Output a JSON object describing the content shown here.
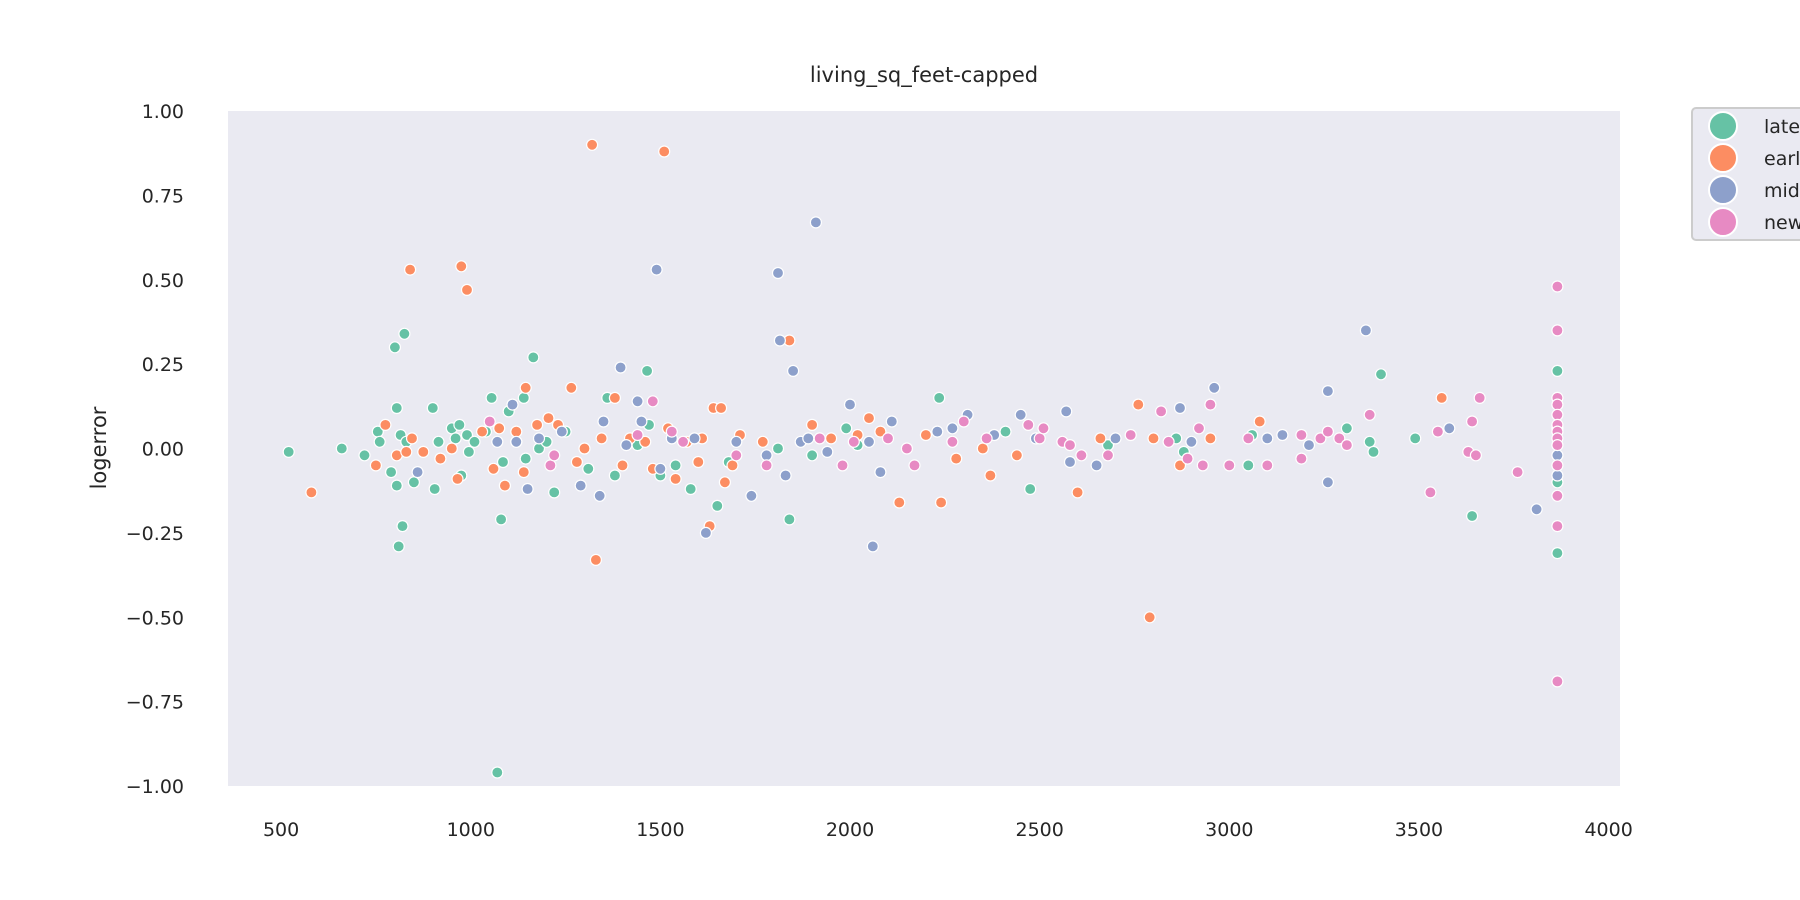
{
  "chart_data": {
    "type": "scatter",
    "title": "living_sq_feet-capped",
    "xlabel": "",
    "ylabel": "logerror",
    "xlim": [
      360,
      4030
    ],
    "ylim": [
      -1.0,
      1.0
    ],
    "xticks": [
      {
        "value": 500,
        "label": "500"
      },
      {
        "value": 1000,
        "label": "1000"
      },
      {
        "value": 1500,
        "label": "1500"
      },
      {
        "value": 2000,
        "label": "2000"
      },
      {
        "value": 2500,
        "label": "2500"
      },
      {
        "value": 3000,
        "label": "3000"
      },
      {
        "value": 3500,
        "label": "3500"
      },
      {
        "value": 4000,
        "label": "4000"
      }
    ],
    "yticks": [
      {
        "value": 1.0,
        "label": "1.00"
      },
      {
        "value": 0.75,
        "label": "0.75"
      },
      {
        "value": 0.5,
        "label": "0.50"
      },
      {
        "value": 0.25,
        "label": "0.25"
      },
      {
        "value": 0.0,
        "label": "0.00"
      },
      {
        "value": -0.25,
        "label": "−0.25"
      },
      {
        "value": -0.5,
        "label": "−0.50"
      },
      {
        "value": -0.75,
        "label": "−0.75"
      },
      {
        "value": -1.0,
        "label": "−1.00"
      }
    ],
    "grid": false,
    "background": "#eaeaf2",
    "legend_position": "outside-top-right",
    "series": [
      {
        "name": "late",
        "color": "#66c2a5",
        "points": [
          [
            520,
            -0.01
          ],
          [
            660,
            0.0
          ],
          [
            720,
            -0.02
          ],
          [
            755,
            0.05
          ],
          [
            760,
            0.02
          ],
          [
            790,
            -0.07
          ],
          [
            800,
            0.3
          ],
          [
            805,
            0.12
          ],
          [
            805,
            -0.11
          ],
          [
            810,
            -0.29
          ],
          [
            815,
            0.04
          ],
          [
            820,
            -0.23
          ],
          [
            825,
            0.34
          ],
          [
            830,
            0.02
          ],
          [
            850,
            -0.1
          ],
          [
            900,
            0.12
          ],
          [
            905,
            -0.12
          ],
          [
            915,
            0.02
          ],
          [
            950,
            0.06
          ],
          [
            960,
            0.03
          ],
          [
            970,
            0.07
          ],
          [
            975,
            -0.08
          ],
          [
            990,
            0.04
          ],
          [
            995,
            -0.01
          ],
          [
            1010,
            0.02
          ],
          [
            1040,
            0.05
          ],
          [
            1055,
            0.15
          ],
          [
            1080,
            -0.21
          ],
          [
            1085,
            -0.04
          ],
          [
            1100,
            0.11
          ],
          [
            1120,
            0.02
          ],
          [
            1140,
            0.15
          ],
          [
            1145,
            -0.03
          ],
          [
            1165,
            0.27
          ],
          [
            1180,
            0.0
          ],
          [
            1200,
            0.02
          ],
          [
            1220,
            -0.13
          ],
          [
            1250,
            0.05
          ],
          [
            1310,
            -0.06
          ],
          [
            1360,
            0.15
          ],
          [
            1380,
            -0.08
          ],
          [
            1440,
            0.01
          ],
          [
            1465,
            0.23
          ],
          [
            1470,
            0.07
          ],
          [
            1500,
            -0.08
          ],
          [
            1540,
            -0.05
          ],
          [
            1580,
            -0.12
          ],
          [
            1650,
            -0.17
          ],
          [
            1680,
            -0.04
          ],
          [
            1810,
            0.0
          ],
          [
            1840,
            -0.21
          ],
          [
            1900,
            -0.02
          ],
          [
            1990,
            0.06
          ],
          [
            2020,
            0.01
          ],
          [
            2235,
            0.15
          ],
          [
            2410,
            0.05
          ],
          [
            2475,
            -0.12
          ],
          [
            2680,
            0.01
          ],
          [
            2860,
            0.03
          ],
          [
            2880,
            -0.01
          ],
          [
            3050,
            -0.05
          ],
          [
            3060,
            0.04
          ],
          [
            3310,
            0.06
          ],
          [
            3370,
            0.02
          ],
          [
            3380,
            -0.01
          ],
          [
            3400,
            0.22
          ],
          [
            3490,
            0.03
          ],
          [
            3640,
            -0.2
          ],
          [
            3865,
            0.23
          ],
          [
            3865,
            0.06
          ],
          [
            3865,
            -0.1
          ],
          [
            3865,
            -0.31
          ],
          [
            1070,
            -0.96
          ]
        ]
      },
      {
        "name": "earl",
        "color": "#fc8d62",
        "points": [
          [
            580,
            -0.13
          ],
          [
            750,
            -0.05
          ],
          [
            775,
            0.07
          ],
          [
            805,
            -0.02
          ],
          [
            830,
            -0.01
          ],
          [
            840,
            0.53
          ],
          [
            845,
            0.03
          ],
          [
            875,
            -0.01
          ],
          [
            920,
            -0.03
          ],
          [
            950,
            0.0
          ],
          [
            965,
            -0.09
          ],
          [
            975,
            0.54
          ],
          [
            990,
            0.47
          ],
          [
            1030,
            0.05
          ],
          [
            1060,
            -0.06
          ],
          [
            1075,
            0.06
          ],
          [
            1090,
            -0.11
          ],
          [
            1120,
            0.05
          ],
          [
            1140,
            -0.07
          ],
          [
            1145,
            0.18
          ],
          [
            1175,
            0.07
          ],
          [
            1205,
            0.09
          ],
          [
            1230,
            0.07
          ],
          [
            1265,
            0.18
          ],
          [
            1280,
            -0.04
          ],
          [
            1300,
            0.0
          ],
          [
            1320,
            0.9
          ],
          [
            1330,
            -0.33
          ],
          [
            1345,
            0.03
          ],
          [
            1380,
            0.15
          ],
          [
            1400,
            -0.05
          ],
          [
            1420,
            0.03
          ],
          [
            1460,
            0.02
          ],
          [
            1480,
            -0.06
          ],
          [
            1510,
            0.88
          ],
          [
            1520,
            0.06
          ],
          [
            1540,
            -0.09
          ],
          [
            1570,
            0.02
          ],
          [
            1600,
            -0.04
          ],
          [
            1610,
            0.03
          ],
          [
            1630,
            -0.23
          ],
          [
            1640,
            0.12
          ],
          [
            1660,
            0.12
          ],
          [
            1670,
            -0.1
          ],
          [
            1690,
            -0.05
          ],
          [
            1710,
            0.04
          ],
          [
            1770,
            0.02
          ],
          [
            1840,
            0.32
          ],
          [
            1900,
            0.07
          ],
          [
            1950,
            0.03
          ],
          [
            2020,
            0.04
          ],
          [
            2050,
            0.09
          ],
          [
            2080,
            0.05
          ],
          [
            2130,
            -0.16
          ],
          [
            2200,
            0.04
          ],
          [
            2240,
            -0.16
          ],
          [
            2280,
            -0.03
          ],
          [
            2350,
            0.0
          ],
          [
            2370,
            -0.08
          ],
          [
            2440,
            -0.02
          ],
          [
            2600,
            -0.13
          ],
          [
            2660,
            0.03
          ],
          [
            2760,
            0.13
          ],
          [
            2790,
            -0.5
          ],
          [
            2800,
            0.03
          ],
          [
            2870,
            -0.05
          ],
          [
            2950,
            0.03
          ],
          [
            3080,
            0.08
          ],
          [
            3560,
            0.15
          ]
        ]
      },
      {
        "name": "mid",
        "color": "#8da0cb",
        "points": [
          [
            860,
            -0.07
          ],
          [
            1070,
            0.02
          ],
          [
            1110,
            0.13
          ],
          [
            1120,
            0.02
          ],
          [
            1150,
            -0.12
          ],
          [
            1180,
            0.03
          ],
          [
            1240,
            0.05
          ],
          [
            1290,
            -0.11
          ],
          [
            1340,
            -0.14
          ],
          [
            1350,
            0.08
          ],
          [
            1395,
            0.24
          ],
          [
            1410,
            0.01
          ],
          [
            1440,
            0.14
          ],
          [
            1450,
            0.08
          ],
          [
            1490,
            0.53
          ],
          [
            1500,
            -0.06
          ],
          [
            1530,
            0.03
          ],
          [
            1590,
            0.03
          ],
          [
            1620,
            -0.25
          ],
          [
            1700,
            0.02
          ],
          [
            1740,
            -0.14
          ],
          [
            1780,
            -0.02
          ],
          [
            1810,
            0.52
          ],
          [
            1815,
            0.32
          ],
          [
            1830,
            -0.08
          ],
          [
            1850,
            0.23
          ],
          [
            1870,
            0.02
          ],
          [
            1890,
            0.03
          ],
          [
            1910,
            0.67
          ],
          [
            1940,
            -0.01
          ],
          [
            2000,
            0.13
          ],
          [
            2050,
            0.02
          ],
          [
            2060,
            -0.29
          ],
          [
            2080,
            -0.07
          ],
          [
            2110,
            0.08
          ],
          [
            2230,
            0.05
          ],
          [
            2270,
            0.06
          ],
          [
            2310,
            0.1
          ],
          [
            2380,
            0.04
          ],
          [
            2450,
            0.1
          ],
          [
            2490,
            0.03
          ],
          [
            2570,
            0.11
          ],
          [
            2580,
            -0.04
          ],
          [
            2650,
            -0.05
          ],
          [
            2700,
            0.03
          ],
          [
            2870,
            0.12
          ],
          [
            2900,
            0.02
          ],
          [
            2960,
            0.18
          ],
          [
            3100,
            0.03
          ],
          [
            3140,
            0.04
          ],
          [
            3210,
            0.01
          ],
          [
            3260,
            0.17
          ],
          [
            3260,
            -0.1
          ],
          [
            3360,
            0.35
          ],
          [
            3580,
            0.06
          ],
          [
            3810,
            -0.18
          ],
          [
            3865,
            -0.02
          ],
          [
            3865,
            -0.08
          ]
        ]
      },
      {
        "name": "new",
        "color": "#e78ac3",
        "points": [
          [
            1050,
            0.08
          ],
          [
            1210,
            -0.05
          ],
          [
            1220,
            -0.02
          ],
          [
            1440,
            0.04
          ],
          [
            1480,
            0.14
          ],
          [
            1530,
            0.05
          ],
          [
            1560,
            0.02
          ],
          [
            1700,
            -0.02
          ],
          [
            1780,
            -0.05
          ],
          [
            1920,
            0.03
          ],
          [
            1980,
            -0.05
          ],
          [
            2010,
            0.02
          ],
          [
            2100,
            0.03
          ],
          [
            2150,
            0.0
          ],
          [
            2170,
            -0.05
          ],
          [
            2270,
            0.02
          ],
          [
            2300,
            0.08
          ],
          [
            2360,
            0.03
          ],
          [
            2470,
            0.07
          ],
          [
            2500,
            0.03
          ],
          [
            2510,
            0.06
          ],
          [
            2560,
            0.02
          ],
          [
            2580,
            0.01
          ],
          [
            2610,
            -0.02
          ],
          [
            2680,
            -0.02
          ],
          [
            2740,
            0.04
          ],
          [
            2820,
            0.11
          ],
          [
            2840,
            0.02
          ],
          [
            2890,
            -0.03
          ],
          [
            2920,
            0.06
          ],
          [
            2930,
            -0.05
          ],
          [
            2950,
            0.13
          ],
          [
            3000,
            -0.05
          ],
          [
            3050,
            0.03
          ],
          [
            3100,
            -0.05
          ],
          [
            3190,
            0.04
          ],
          [
            3190,
            -0.03
          ],
          [
            3240,
            0.03
          ],
          [
            3260,
            0.05
          ],
          [
            3290,
            0.03
          ],
          [
            3310,
            0.01
          ],
          [
            3370,
            0.1
          ],
          [
            3530,
            -0.13
          ],
          [
            3550,
            0.05
          ],
          [
            3630,
            -0.01
          ],
          [
            3640,
            0.08
          ],
          [
            3650,
            -0.02
          ],
          [
            3660,
            0.15
          ],
          [
            3760,
            -0.07
          ],
          [
            3865,
            0.48
          ],
          [
            3865,
            0.35
          ],
          [
            3865,
            0.15
          ],
          [
            3865,
            0.13
          ],
          [
            3865,
            0.1
          ],
          [
            3865,
            0.07
          ],
          [
            3865,
            0.05
          ],
          [
            3865,
            0.03
          ],
          [
            3865,
            0.01
          ],
          [
            3865,
            -0.05
          ],
          [
            3865,
            -0.14
          ],
          [
            3865,
            -0.23
          ],
          [
            3865,
            -0.69
          ]
        ]
      }
    ],
    "legend": [
      {
        "label": "late",
        "color": "#66c2a5"
      },
      {
        "label": "earl",
        "color": "#fc8d62"
      },
      {
        "label": "mid",
        "color": "#8da0cb"
      },
      {
        "label": "new",
        "color": "#e78ac3"
      }
    ]
  }
}
